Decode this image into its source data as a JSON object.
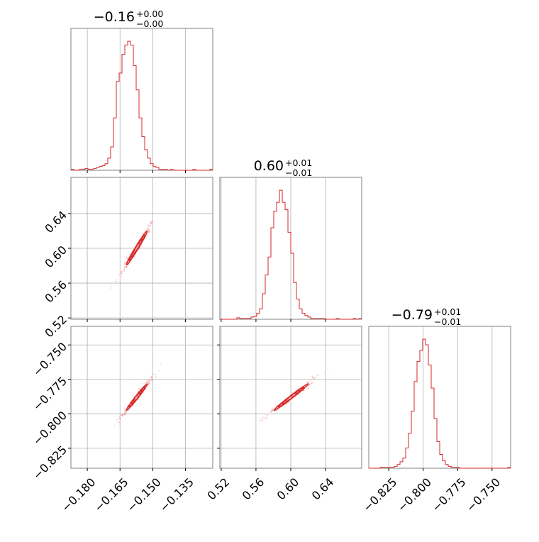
{
  "colors": {
    "series": "#d62728",
    "grid": "#b0b0b0",
    "frame": "#808080",
    "background": "#ffffff"
  },
  "chart_data": {
    "type": "corner",
    "parameters": [
      {
        "title_value": "−0.16",
        "title_plus": "+0.00",
        "title_minus": "−0.00",
        "range": [
          -0.1875,
          -0.1225
        ],
        "ticks": [
          -0.18,
          -0.165,
          -0.15,
          -0.135
        ],
        "tick_labels": [
          "−0.180",
          "−0.165",
          "−0.150",
          "−0.135"
        ],
        "hist_start": -0.1875,
        "hist_step": 0.0013,
        "hist_counts": [
          1,
          0,
          0,
          1,
          1,
          2,
          1,
          1,
          2,
          3,
          4,
          5,
          7,
          13,
          25,
          56,
          95,
          104,
          124,
          134,
          138,
          134,
          112,
          86,
          56,
          36,
          22,
          13,
          7,
          4,
          3,
          1,
          1,
          1,
          0,
          1,
          0,
          0,
          0,
          0,
          0,
          0,
          0,
          1,
          0,
          0,
          0,
          0,
          0,
          1
        ]
      },
      {
        "title_value": "0.60",
        "title_plus": "+0.01",
        "title_minus": "−0.01",
        "range": [
          0.5185,
          0.6815
        ],
        "ticks": [
          0.52,
          0.56,
          0.6,
          0.64
        ],
        "tick_labels": [
          "0.52",
          "0.56",
          "0.60",
          "0.64"
        ],
        "hist_start": 0.5185,
        "hist_step": 0.00326,
        "hist_counts": [
          0,
          0,
          0,
          0,
          0,
          0,
          2,
          1,
          1,
          1,
          1,
          3,
          4,
          8,
          14,
          34,
          59,
          83,
          122,
          144,
          156,
          172,
          156,
          146,
          116,
          88,
          49,
          27,
          14,
          8,
          5,
          3,
          1,
          1,
          1,
          1,
          1,
          0,
          0,
          0,
          0,
          1,
          0,
          0,
          0,
          0,
          0,
          1,
          0,
          1
        ]
      },
      {
        "title_value": "−0.79",
        "title_plus": "+0.01",
        "title_minus": "−0.01",
        "range": [
          -0.8395,
          -0.7365
        ],
        "ticks": [
          -0.825,
          -0.8,
          -0.775,
          -0.75
        ],
        "tick_labels": [
          "−0.825",
          "−0.800",
          "−0.775",
          "−0.750"
        ],
        "hist_start": -0.8395,
        "hist_step": 0.00206,
        "hist_counts": [
          0,
          0,
          0,
          0,
          1,
          1,
          1,
          1,
          1,
          2,
          4,
          7,
          11,
          22,
          38,
          62,
          94,
          116,
          128,
          140,
          134,
          112,
          87,
          54,
          29,
          15,
          8,
          4,
          2,
          1,
          1,
          1,
          0,
          0,
          0,
          0,
          0,
          0,
          0,
          0,
          0,
          0,
          0,
          0,
          0,
          0,
          0,
          0,
          0,
          1
        ]
      }
    ],
    "pairs": [
      {
        "row": 1,
        "col": 0,
        "y_ticks": [
          0.52,
          0.56,
          0.6,
          0.64
        ],
        "y_tick_labels": [
          "0.52",
          "0.56",
          "0.60",
          "0.64"
        ],
        "ellipse_levels": [
          1,
          0.75,
          0.5,
          0.3
        ],
        "center": [
          -0.1573,
          0.6004
        ],
        "sigma": [
          0.0024,
          0.0098
        ],
        "corr": 0.985
      },
      {
        "row": 2,
        "col": 0,
        "y_ticks": [
          -0.825,
          -0.8,
          -0.775,
          -0.75
        ],
        "y_tick_labels": [
          "−0.825",
          "−0.800",
          "−0.775",
          "−0.750"
        ],
        "ellipse_levels": [
          1,
          0.75,
          0.5,
          0.3
        ],
        "center": [
          -0.1573,
          -0.7879
        ],
        "sigma": [
          0.0024,
          0.0048
        ],
        "corr": 0.985
      },
      {
        "row": 2,
        "col": 1,
        "y_ticks": [
          -0.825,
          -0.8,
          -0.775,
          -0.75
        ],
        "y_tick_labels": [
          "−0.825",
          "−0.800",
          "−0.775",
          "−0.750"
        ],
        "ellipse_levels": [
          1,
          0.75,
          0.5,
          0.3
        ],
        "center": [
          0.6004,
          -0.7879
        ],
        "sigma": [
          0.0098,
          0.0048
        ],
        "corr": 0.99
      }
    ],
    "grid": true
  }
}
